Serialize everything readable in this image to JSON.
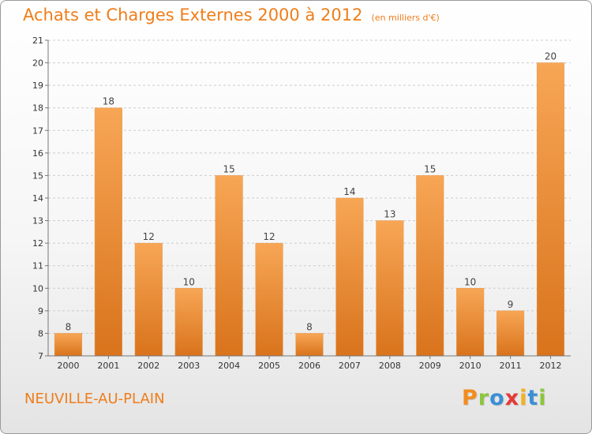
{
  "title": "Achats et Charges Externes 2000 à 2012",
  "unit": "(en milliers d'€)",
  "commune": "NEUVILLE-AU-PLAIN",
  "logo": {
    "letters": [
      "P",
      "r",
      "o",
      "x",
      "i",
      "t",
      "i"
    ],
    "colors": [
      "#f28c1e",
      "#8cc63e",
      "#3a8fd6",
      "#e53935",
      "#f2b21e",
      "#3a8fd6",
      "#8cc63e"
    ]
  },
  "colors": {
    "accent": "#ef7d1a",
    "bar_top": "#f7a655",
    "bar_bottom": "#d9731c",
    "grid": "#cccccc"
  },
  "chart_data": {
    "type": "bar",
    "categories": [
      "2000",
      "2001",
      "2002",
      "2003",
      "2004",
      "2005",
      "2006",
      "2007",
      "2008",
      "2009",
      "2010",
      "2011",
      "2012"
    ],
    "values": [
      8,
      18,
      12,
      10,
      15,
      12,
      8,
      14,
      13,
      15,
      10,
      9,
      20
    ],
    "ylim": [
      7,
      21
    ],
    "yticks": [
      7,
      8,
      9,
      10,
      11,
      12,
      13,
      14,
      15,
      16,
      17,
      18,
      19,
      20,
      21
    ],
    "grid": true,
    "data_labels": true
  }
}
